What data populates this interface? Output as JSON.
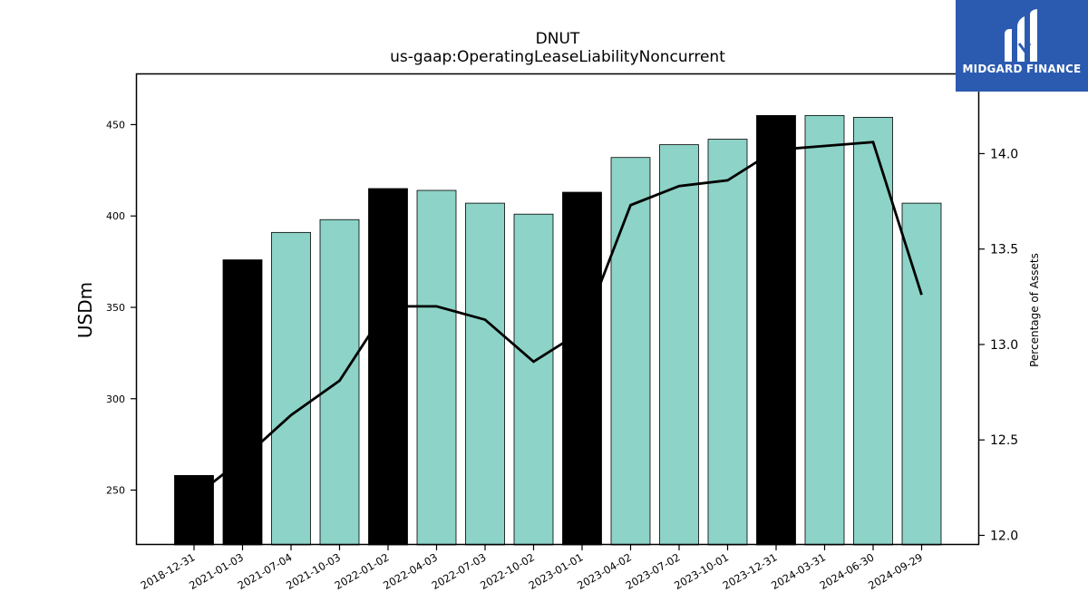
{
  "chart_data": {
    "type": "bar",
    "title": "DNUT",
    "subtitle": "us-gaap:OperatingLeaseLiabilityNoncurrent",
    "ylabel": "USDm",
    "ylabel_right": "Percentage of Assets",
    "categories": [
      "2018-12-31",
      "2021-01-03",
      "2021-07-04",
      "2021-10-03",
      "2022-01-02",
      "2022-04-03",
      "2022-07-03",
      "2022-10-02",
      "2023-01-01",
      "2023-04-02",
      "2023-07-02",
      "2023-10-01",
      "2023-12-31",
      "2024-03-31",
      "2024-06-30",
      "2024-09-29"
    ],
    "series": [
      {
        "type": "bar",
        "axis": "left",
        "values": [
          258,
          376,
          391,
          398,
          415,
          414,
          407,
          401,
          413,
          432,
          439,
          442,
          455,
          455,
          454,
          407
        ],
        "highlight": [
          true,
          true,
          false,
          false,
          true,
          false,
          false,
          false,
          true,
          false,
          false,
          false,
          true,
          false,
          false,
          false
        ]
      },
      {
        "type": "line",
        "axis": "right",
        "values": [
          12.2,
          12.4,
          12.63,
          12.81,
          13.2,
          13.2,
          13.13,
          12.91,
          13.07,
          13.73,
          13.83,
          13.86,
          14.02,
          14.04,
          14.06,
          13.26
        ]
      }
    ],
    "ylim": [
      220,
      478
    ],
    "ylim_right": [
      11.95,
      14.42
    ],
    "yticks": [
      250,
      300,
      350,
      400,
      450
    ],
    "yticks_right": [
      12.0,
      12.5,
      13.0,
      13.5,
      14.0
    ],
    "grid": false,
    "colors": {
      "bar": "#8dd3c7",
      "highlight": "#000000",
      "line": "#000000"
    }
  },
  "logo": {
    "text": "MIDGARD FINANCE",
    "background": "#2b5bb0"
  }
}
